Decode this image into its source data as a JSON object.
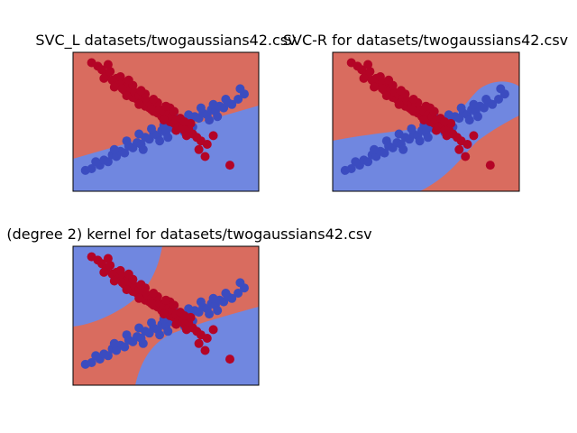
{
  "colors": {
    "class_red_region": "#d96c5f",
    "class_blue_region": "#7087e0",
    "class_red_point": "#b40426",
    "class_blue_point": "#3b4cc0"
  },
  "chart_data": [
    {
      "type": "scatter",
      "title": "SVC_L datasets/twogaussians42.csv",
      "kernel": "linear",
      "background": "decision-regions",
      "axes_visible": false,
      "grid": false
    },
    {
      "type": "scatter",
      "title": "SVC-R for datasets/twogaussians42.csv",
      "kernel": "rbf",
      "background": "decision-regions",
      "axes_visible": false,
      "grid": false
    },
    {
      "type": "scatter",
      "title": "(degree 2) kernel for datasets/twogaussians42.csv",
      "kernel": "polynomial",
      "background": "decision-regions",
      "axes_visible": false,
      "grid": false
    }
  ],
  "points": {
    "red": [
      [
        -3.6,
        3.4
      ],
      [
        -3.3,
        3.2
      ],
      [
        -3.1,
        3.0
      ],
      [
        -2.9,
        2.7
      ],
      [
        -2.7,
        2.9
      ],
      [
        -2.6,
        2.4
      ],
      [
        -2.4,
        2.5
      ],
      [
        -2.3,
        2.1
      ],
      [
        -2.1,
        2.3
      ],
      [
        -2.0,
        1.8
      ],
      [
        -1.9,
        2.0
      ],
      [
        -1.8,
        1.6
      ],
      [
        -1.7,
        1.9
      ],
      [
        -1.6,
        1.4
      ],
      [
        -1.5,
        1.7
      ],
      [
        -1.4,
        1.3
      ],
      [
        -1.3,
        1.5
      ],
      [
        -1.2,
        1.1
      ],
      [
        -1.1,
        1.4
      ],
      [
        -1.0,
        0.9
      ],
      [
        -0.9,
        1.2
      ],
      [
        -0.8,
        0.8
      ],
      [
        -0.7,
        1.0
      ],
      [
        -0.6,
        0.6
      ],
      [
        -0.5,
        0.9
      ],
      [
        -0.4,
        0.5
      ],
      [
        -0.3,
        0.7
      ],
      [
        -0.2,
        0.3
      ],
      [
        -0.1,
        0.6
      ],
      [
        0.0,
        0.2
      ],
      [
        0.1,
        0.4
      ],
      [
        0.2,
        0.0
      ],
      [
        0.3,
        0.3
      ],
      [
        0.4,
        -0.1
      ],
      [
        0.5,
        0.1
      ],
      [
        0.6,
        -0.3
      ],
      [
        0.8,
        -0.2
      ],
      [
        0.9,
        -0.5
      ],
      [
        1.1,
        -0.4
      ],
      [
        1.3,
        -0.7
      ],
      [
        1.5,
        -0.9
      ],
      [
        1.7,
        -1.1
      ],
      [
        2.0,
        -1.3
      ],
      [
        -2.5,
        2.0
      ],
      [
        -2.2,
        2.6
      ],
      [
        -1.9,
        1.5
      ],
      [
        -1.6,
        2.1
      ],
      [
        -1.3,
        1.0
      ],
      [
        -1.0,
        1.6
      ],
      [
        -0.7,
        0.7
      ],
      [
        -0.4,
        1.1
      ],
      [
        -0.1,
        0.1
      ],
      [
        0.2,
        0.8
      ],
      [
        0.5,
        -0.5
      ],
      [
        0.7,
        0.2
      ],
      [
        1.0,
        -0.8
      ],
      [
        1.2,
        -0.1
      ],
      [
        -3.0,
        2.5
      ],
      [
        -2.8,
        3.3
      ],
      [
        3.1,
        -2.5
      ],
      [
        1.6,
        -1.6
      ],
      [
        2.3,
        -0.8
      ],
      [
        1.9,
        -2.0
      ],
      [
        -0.6,
        1.3
      ],
      [
        -1.2,
        1.8
      ],
      [
        -1.8,
        2.4
      ],
      [
        0.0,
        0.9
      ],
      [
        0.4,
        0.6
      ],
      [
        0.9,
        0.0
      ],
      [
        -2.1,
        1.9
      ]
    ],
    "blue": [
      [
        -3.9,
        -2.8
      ],
      [
        -3.6,
        -2.7
      ],
      [
        -3.2,
        -2.5
      ],
      [
        -3.0,
        -2.2
      ],
      [
        -2.8,
        -2.3
      ],
      [
        -2.6,
        -1.9
      ],
      [
        -2.4,
        -2.0
      ],
      [
        -2.2,
        -1.7
      ],
      [
        -2.0,
        -1.8
      ],
      [
        -1.8,
        -1.4
      ],
      [
        -1.6,
        -1.5
      ],
      [
        -1.4,
        -1.2
      ],
      [
        -1.2,
        -1.3
      ],
      [
        -1.0,
        -0.9
      ],
      [
        -0.8,
        -1.0
      ],
      [
        -0.6,
        -0.7
      ],
      [
        -0.4,
        -0.8
      ],
      [
        -0.2,
        -0.5
      ],
      [
        0.0,
        -0.6
      ],
      [
        0.2,
        -0.3
      ],
      [
        0.4,
        -0.4
      ],
      [
        0.6,
        -0.1
      ],
      [
        0.8,
        -0.2
      ],
      [
        1.0,
        0.1
      ],
      [
        1.2,
        0.0
      ],
      [
        1.4,
        0.3
      ],
      [
        1.6,
        0.2
      ],
      [
        1.8,
        0.5
      ],
      [
        2.0,
        0.4
      ],
      [
        2.2,
        0.7
      ],
      [
        2.4,
        0.6
      ],
      [
        2.6,
        0.9
      ],
      [
        2.8,
        0.8
      ],
      [
        3.0,
        1.1
      ],
      [
        3.2,
        1.0
      ],
      [
        3.5,
        1.3
      ],
      [
        3.8,
        1.6
      ],
      [
        -2.5,
        -1.6
      ],
      [
        -1.9,
        -1.1
      ],
      [
        -1.3,
        -0.7
      ],
      [
        -0.7,
        -0.4
      ],
      [
        -0.1,
        -0.2
      ],
      [
        0.5,
        0.2
      ],
      [
        1.1,
        0.4
      ],
      [
        1.7,
        0.8
      ],
      [
        2.3,
        1.0
      ],
      [
        2.9,
        1.3
      ],
      [
        -3.4,
        -2.3
      ],
      [
        -1.1,
        -1.6
      ],
      [
        0.1,
        -0.9
      ],
      [
        1.3,
        -0.3
      ],
      [
        2.5,
        0.3
      ],
      [
        3.6,
        1.9
      ],
      [
        -0.3,
        -1.1
      ],
      [
        0.9,
        -0.6
      ],
      [
        2.1,
        0.1
      ]
    ]
  }
}
